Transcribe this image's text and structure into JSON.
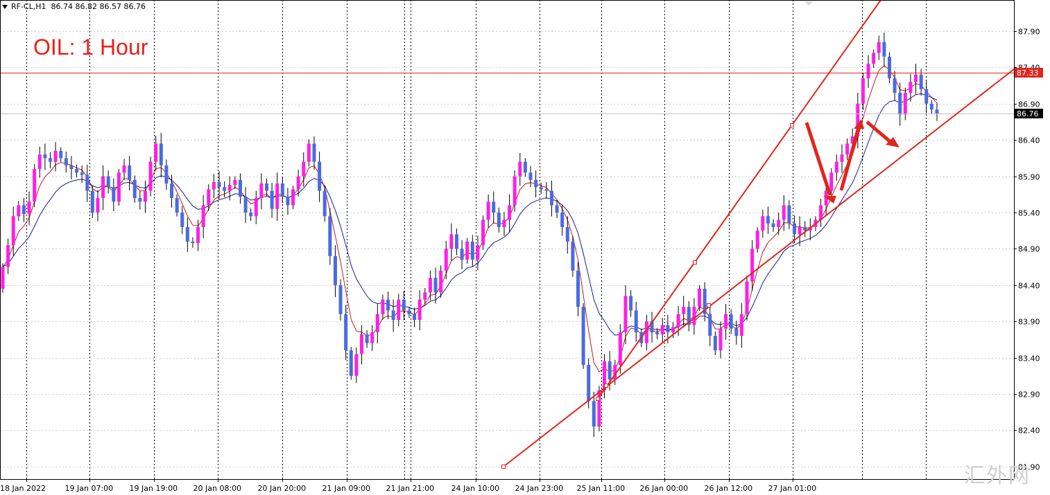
{
  "header": {
    "symbol": "RF-CL,H1",
    "ohlc": "86.74 86.82 86.57 86.76"
  },
  "watermark": "汇外网",
  "chart_data": {
    "type": "candlestick",
    "title": "OIL: 1 Hour",
    "symbol": "RF-CL",
    "timeframe": "H1",
    "y_ticks": [
      "87.90",
      "87.40",
      "86.90",
      "86.40",
      "85.90",
      "85.40",
      "84.90",
      "84.40",
      "83.90",
      "83.40",
      "82.90",
      "82.40",
      "81.90"
    ],
    "ylim": [
      81.8,
      88.35
    ],
    "x_labels": [
      "18 Jan 2022",
      "19 Jan 07:00",
      "19 Jan 19:00",
      "20 Jan 08:00",
      "20 Jan 20:00",
      "21 Jan 09:00",
      "21 Jan 21:00",
      "24 Jan 10:00",
      "24 Jan 23:00",
      "25 Jan 11:00",
      "26 Jan 00:00",
      "26 Jan 12:00",
      "27 Jan 01:00"
    ],
    "price_labels": [
      {
        "name": "level",
        "value": "87.33",
        "color": "#e0261c"
      },
      {
        "name": "current",
        "value": "86.76",
        "color": "#000000"
      }
    ],
    "horizontal_line": 87.33,
    "bull_color": "#ff1fe6",
    "bear_color": "#4a6be0",
    "ma_fast_color": "#c41a1a",
    "ma_slow_color": "#1a1a9c",
    "line_color": "#e0261c",
    "grid": true,
    "closes": [
      84.65,
      84.95,
      85.35,
      85.5,
      85.38,
      85.55,
      86.0,
      86.2,
      86.15,
      86.1,
      86.25,
      86.15,
      86.05,
      86.0,
      85.95,
      85.92,
      85.7,
      85.4,
      85.6,
      85.9,
      85.75,
      85.55,
      85.95,
      86.05,
      85.85,
      85.6,
      85.55,
      85.7,
      86.1,
      86.35,
      86.05,
      85.8,
      85.6,
      85.4,
      85.2,
      85.0,
      84.98,
      85.2,
      85.5,
      85.72,
      85.82,
      85.75,
      85.7,
      85.78,
      85.85,
      85.62,
      85.4,
      85.35,
      85.6,
      85.8,
      85.7,
      85.45,
      85.8,
      85.62,
      85.5,
      85.72,
      85.9,
      86.1,
      86.35,
      86.1,
      85.7,
      85.35,
      84.8,
      84.4,
      84.0,
      83.5,
      83.15,
      83.45,
      83.72,
      83.6,
      83.75,
      84.0,
      84.2,
      84.05,
      83.92,
      84.2,
      84.05,
      84.0,
      83.92,
      84.2,
      84.3,
      84.5,
      84.3,
      84.6,
      84.9,
      85.1,
      84.9,
      84.75,
      85.0,
      84.75,
      84.95,
      85.3,
      85.55,
      85.4,
      85.2,
      85.3,
      85.5,
      85.9,
      86.1,
      85.95,
      85.85,
      85.75,
      85.72,
      85.7,
      85.5,
      85.4,
      85.2,
      85.0,
      84.6,
      84.1,
      83.3,
      82.8,
      82.45,
      82.95,
      83.35,
      83.1,
      83.3,
      83.75,
      84.25,
      84.05,
      83.75,
      83.6,
      83.9,
      83.75,
      83.72,
      83.85,
      83.75,
      83.82,
      84.0,
      84.1,
      83.85,
      84.1,
      84.35,
      84.0,
      83.7,
      83.5,
      83.8,
      84.0,
      83.8,
      83.7,
      84.0,
      84.45,
      84.9,
      85.15,
      85.35,
      85.25,
      85.2,
      85.3,
      85.5,
      85.25,
      85.1,
      85.2,
      85.15,
      85.2,
      85.3,
      85.5,
      85.7,
      85.95,
      86.1,
      86.2,
      86.35,
      86.45,
      86.9,
      87.25,
      87.45,
      87.6,
      87.75,
      87.55,
      87.25,
      87.05,
      86.75,
      87.05,
      87.2,
      87.3,
      87.1,
      86.9,
      86.82,
      86.76
    ]
  }
}
